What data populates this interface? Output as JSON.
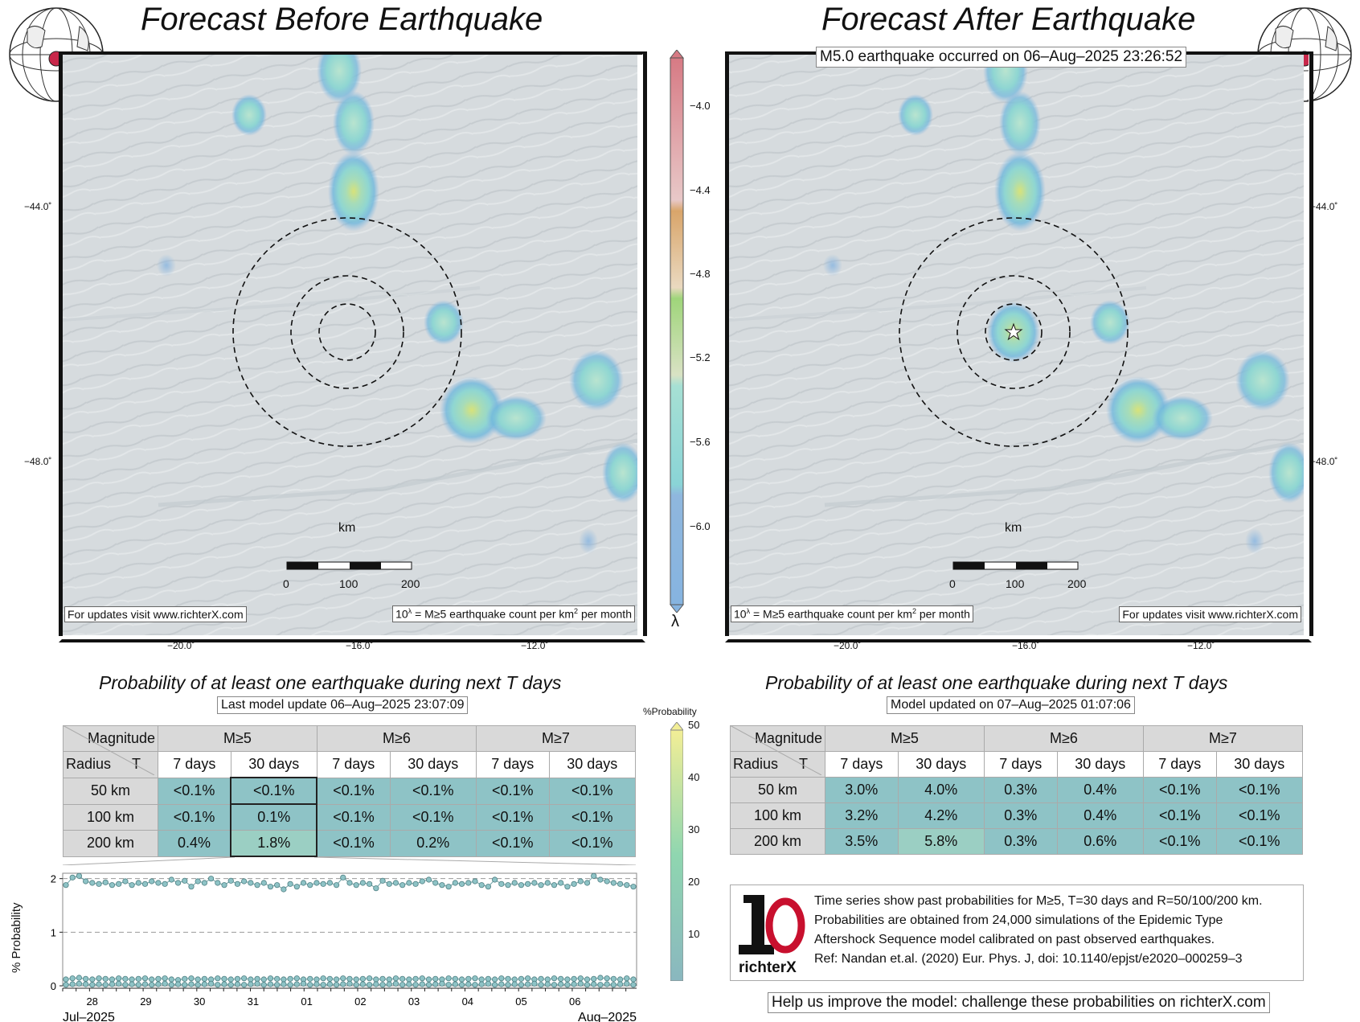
{
  "left": {
    "title": "Forecast Before Earthquake",
    "footer_left": "For updates visit www.richterX.com",
    "footer_right": "10λ = M≥5 earthquake count per km2 per month",
    "prob_title": "Probability of at least one earthquake during next T days",
    "update_label": "Last model update 06–Aug–2025 23:07:09",
    "rows": [
      {
        "radius": "50 km",
        "v": [
          "<0.1%",
          "<0.1%",
          "<0.1%",
          "<0.1%",
          "<0.1%",
          "<0.1%"
        ]
      },
      {
        "radius": "100 km",
        "v": [
          "<0.1%",
          "0.1%",
          "<0.1%",
          "<0.1%",
          "<0.1%",
          "<0.1%"
        ]
      },
      {
        "radius": "200 km",
        "v": [
          "0.4%",
          "1.8%",
          "<0.1%",
          "0.2%",
          "<0.1%",
          "<0.1%"
        ]
      }
    ]
  },
  "right": {
    "title": "Forecast After Earthquake",
    "event_label": "M5.0 earthquake occurred on 06–Aug–2025 23:26:52",
    "footer_left": "10λ = M≥5 earthquake count per km2 per month",
    "footer_right": "For updates visit www.richterX.com",
    "prob_title": "Probability of at least one earthquake during next T days",
    "update_label": "Model updated on 07–Aug–2025 01:07:06",
    "rows": [
      {
        "radius": "50 km",
        "v": [
          "3.0%",
          "4.0%",
          "0.3%",
          "0.4%",
          "<0.1%",
          "<0.1%"
        ]
      },
      {
        "radius": "100 km",
        "v": [
          "3.2%",
          "4.2%",
          "0.3%",
          "0.4%",
          "<0.1%",
          "<0.1%"
        ]
      },
      {
        "radius": "200 km",
        "v": [
          "3.5%",
          "5.8%",
          "0.3%",
          "0.6%",
          "<0.1%",
          "<0.1%"
        ]
      }
    ]
  },
  "map_axes": {
    "lon_ticks": [
      "−20.0˚",
      "−16.0˚",
      "−12.0˚"
    ],
    "lat_ticks": [
      "−44.0˚",
      "−48.0˚"
    ],
    "scale_unit": "km",
    "scale_ticks": [
      "0",
      "100",
      "200"
    ]
  },
  "table_header": {
    "magnitude": "Magnitude",
    "radius": "Radius",
    "t": "T",
    "mags": [
      "M≥5",
      "M≥6",
      "M≥7"
    ],
    "periods": [
      "7 days",
      "30 days",
      "7 days",
      "30 days",
      "7 days",
      "30 days"
    ]
  },
  "lambda_colorbar": {
    "ticks": [
      "−4.0",
      "−4.4",
      "−4.8",
      "−5.2",
      "−5.6",
      "−6.0"
    ],
    "symbol": "λ"
  },
  "prob_colorbar": {
    "label": "%Probability",
    "ticks": [
      "50",
      "40",
      "30",
      "20",
      "10"
    ]
  },
  "chart_data": {
    "type": "line",
    "ylabel": "% Probability",
    "y_ticks": [
      "2",
      "1",
      "0"
    ],
    "x_ticks": [
      "28",
      "29",
      "30",
      "31",
      "01",
      "02",
      "03",
      "04",
      "05",
      "06"
    ],
    "x_start_label": "Jul–2025",
    "x_end_label": "Aug–2025",
    "ylim": [
      0,
      2.1
    ],
    "series": [
      {
        "values": [
          1.88,
          2.02,
          2.05,
          1.95,
          1.92,
          1.9,
          1.93,
          1.88,
          1.9,
          1.95,
          1.88,
          1.92,
          1.9,
          1.95,
          1.92,
          1.9,
          1.98,
          1.92,
          1.96,
          1.85,
          1.95,
          1.92,
          2.0,
          1.92,
          1.88,
          1.96,
          1.9,
          1.95,
          1.92,
          1.88,
          1.92,
          1.85,
          1.88,
          1.8,
          1.9,
          1.85,
          1.92,
          1.88,
          1.92,
          1.9,
          1.92,
          1.88,
          2.02,
          1.92,
          1.88,
          1.92,
          1.9,
          1.82,
          1.96,
          1.9,
          1.92,
          1.88,
          1.92,
          1.9,
          1.95,
          1.98,
          1.92,
          1.88,
          1.85,
          1.92,
          1.9,
          1.92,
          1.95,
          1.88,
          1.85,
          1.98,
          1.9,
          1.88,
          1.92,
          1.88,
          1.9,
          1.92,
          1.88,
          1.92,
          1.88,
          1.92,
          1.85,
          1.9,
          1.95,
          1.92,
          2.05,
          1.98,
          1.95,
          1.92,
          1.9,
          1.88,
          1.85
        ]
      },
      {
        "values": [
          0.12,
          0.14,
          0.15,
          0.13,
          0.12,
          0.14,
          0.13,
          0.12,
          0.14,
          0.13,
          0.12,
          0.13,
          0.14,
          0.12,
          0.13,
          0.14,
          0.12,
          0.11,
          0.13,
          0.14,
          0.12,
          0.13,
          0.12,
          0.14,
          0.13,
          0.12,
          0.13,
          0.14,
          0.12,
          0.13,
          0.12,
          0.14,
          0.13,
          0.12,
          0.13,
          0.14,
          0.12,
          0.13,
          0.12,
          0.14,
          0.13,
          0.12,
          0.14,
          0.13,
          0.12,
          0.13,
          0.14,
          0.12,
          0.13,
          0.12,
          0.14,
          0.13,
          0.12,
          0.13,
          0.14,
          0.12,
          0.13,
          0.12,
          0.14,
          0.13,
          0.12,
          0.13,
          0.14,
          0.12,
          0.13,
          0.12,
          0.14,
          0.13,
          0.12,
          0.13,
          0.14,
          0.12,
          0.13,
          0.12,
          0.14,
          0.13,
          0.12,
          0.13,
          0.14,
          0.12,
          0.13,
          0.15,
          0.14,
          0.13,
          0.12,
          0.14,
          0.12
        ]
      },
      {
        "values": [
          0.02,
          0.03,
          0.04,
          0.03,
          0.02,
          0.03,
          0.02,
          0.03,
          0.04,
          0.02,
          0.03,
          0.02,
          0.03,
          0.02,
          0.03,
          0.04,
          0.02,
          0.03,
          0.02,
          0.03,
          0.02,
          0.03,
          0.04,
          0.02,
          0.03,
          0.02,
          0.03,
          0.02,
          0.03,
          0.04,
          0.02,
          0.03,
          0.02,
          0.03,
          0.02,
          0.03,
          0.04,
          0.02,
          0.03,
          0.02,
          0.03,
          0.02,
          0.03,
          0.04,
          0.02,
          0.03,
          0.02,
          0.03,
          0.02,
          0.03,
          0.04,
          0.02,
          0.03,
          0.02,
          0.03,
          0.02,
          0.03,
          0.04,
          0.02,
          0.03,
          0.02,
          0.03,
          0.02,
          0.03,
          0.04,
          0.02,
          0.03,
          0.02,
          0.03,
          0.02,
          0.03,
          0.04,
          0.02,
          0.03,
          0.02,
          0.03,
          0.02,
          0.03,
          0.04,
          0.02,
          0.03,
          0.02,
          0.03,
          0.02,
          0.03,
          0.04,
          0.02
        ]
      }
    ]
  },
  "info": {
    "lines": [
      "Time series show past probabilities for M≥5, T=30 days and R=50/100/200 km.",
      "Probabilities are obtained from 24,000 simulations of the Epidemic Type",
      "Aftershock Sequence model calibrated on past observed earthquakes.",
      "Ref: Nandan et.al. (2020) Eur. Phys. J, doi: 10.1140/epjst/e2020–000259–3"
    ],
    "logo_text": "richterX",
    "help": "Help us improve the model: challenge these probabilities on richterX.com"
  },
  "colors": {
    "table_teal": "#8ec3c6",
    "table_gray": "#d9d9d9",
    "series": "#7fb6b8"
  }
}
